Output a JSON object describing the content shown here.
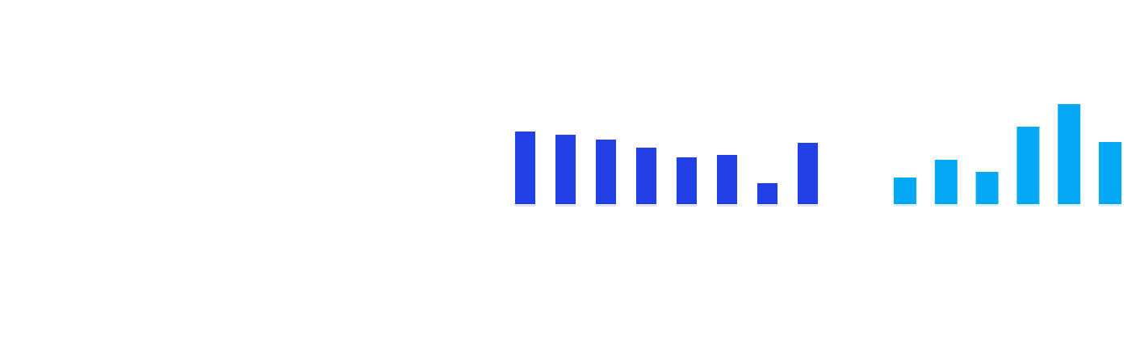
{
  "chart_data": [
    {
      "type": "bar",
      "color": "#213fe6",
      "values": [
        90,
        86,
        80,
        70,
        58,
        61,
        26,
        76
      ]
    },
    {
      "type": "bar",
      "color": "#03a9f4",
      "values": [
        33,
        55,
        40,
        96,
        124,
        77
      ]
    }
  ]
}
